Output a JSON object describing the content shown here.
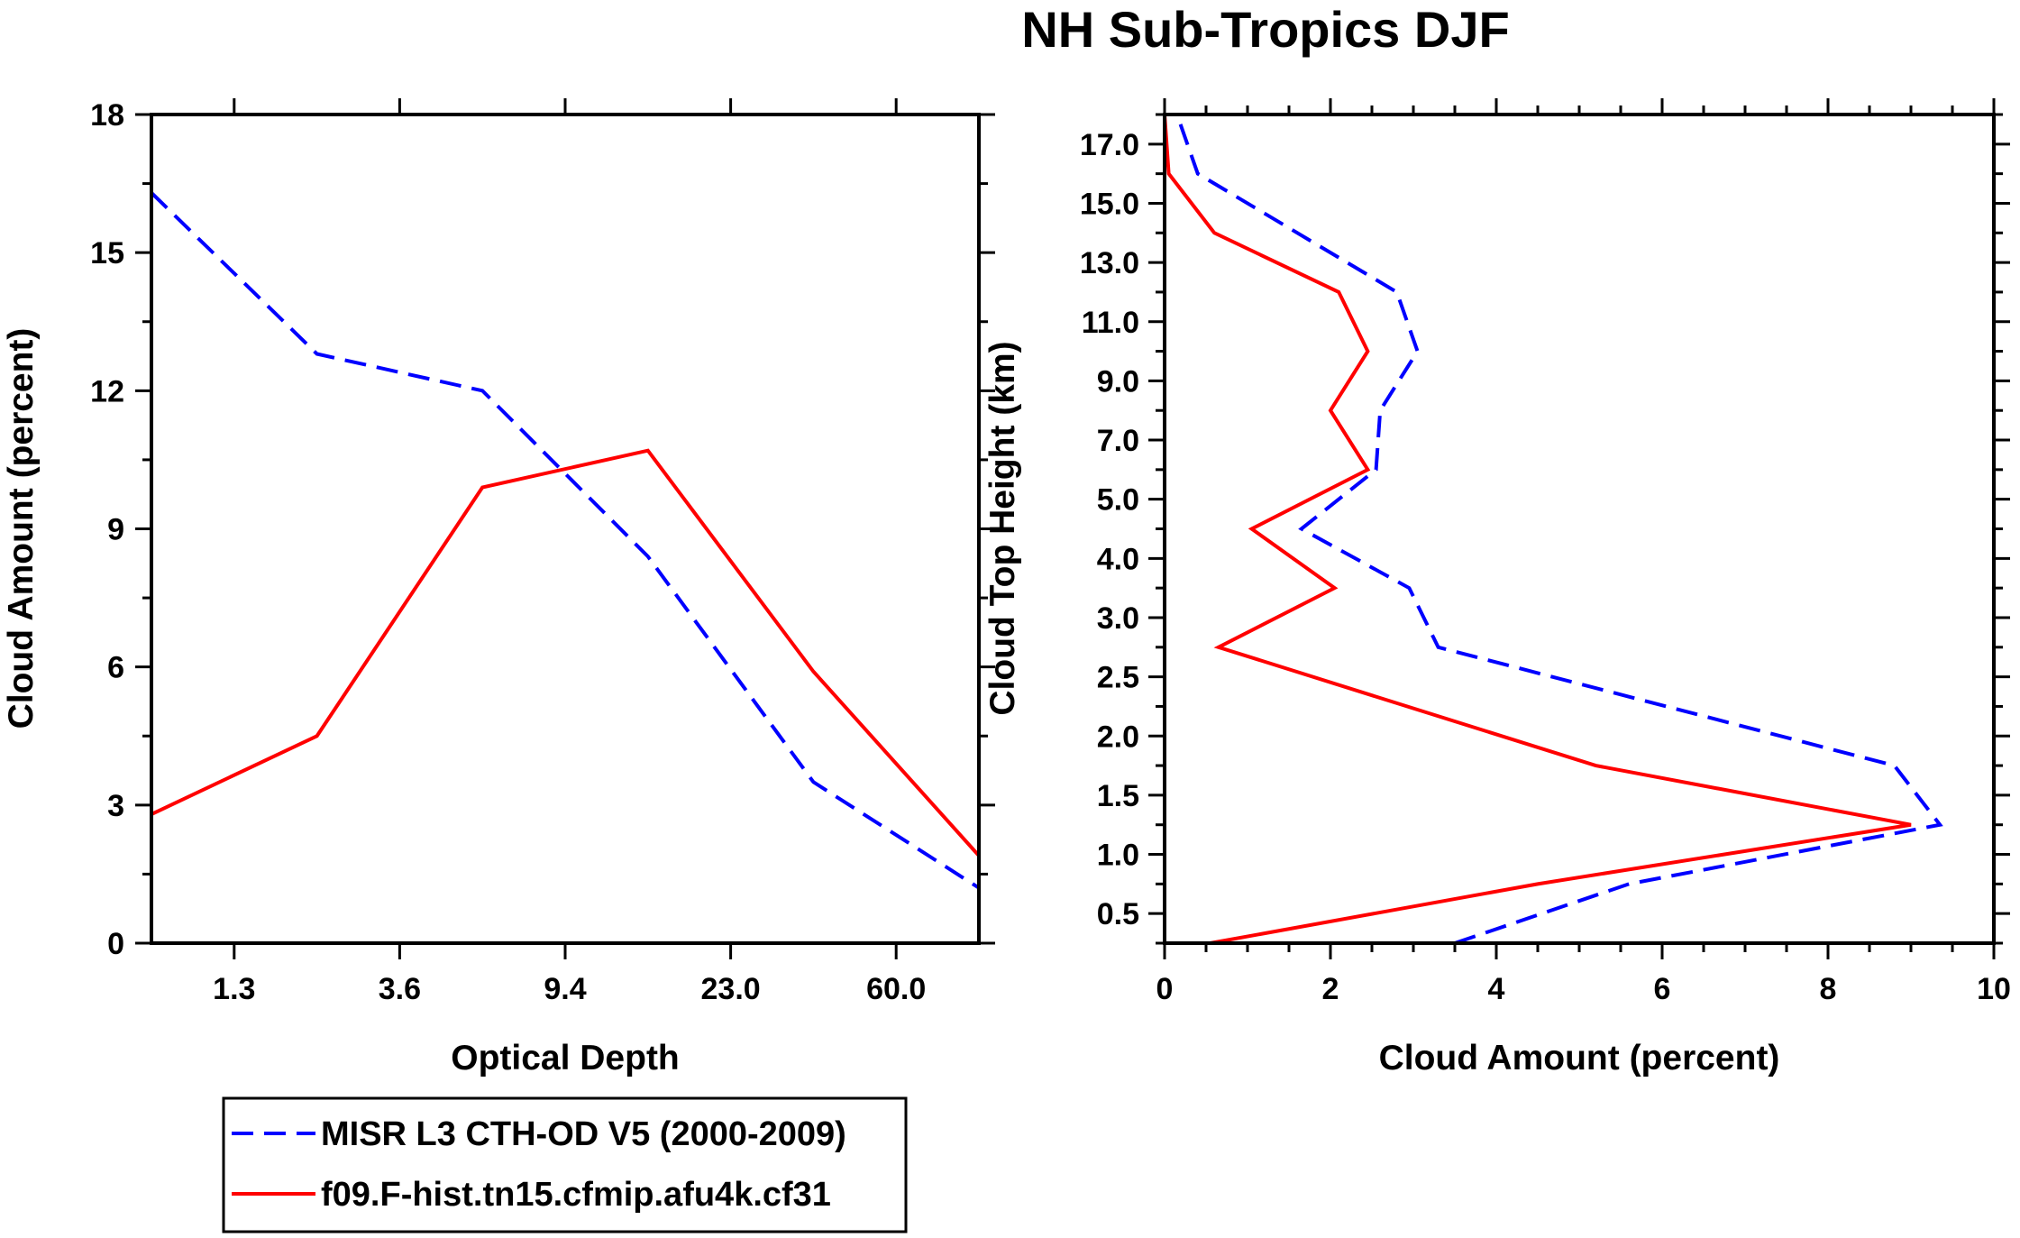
{
  "figure": {
    "title": "NH Sub-Tropics DJF"
  },
  "chart_data": [
    {
      "type": "line",
      "xlabel": "Optical Depth",
      "ylabel": "Cloud Amount (percent)",
      "xtick_labels": [
        "1.3",
        "3.6",
        "9.4",
        "23.0",
        "60.0"
      ],
      "yticks": [
        0,
        3,
        6,
        9,
        12,
        15,
        18
      ],
      "ylim": [
        0,
        18
      ],
      "x_bins": [
        0,
        1,
        2,
        3,
        4,
        5,
        6
      ],
      "series": [
        {
          "name": "MISR L3 CTH-OD V5 (2000-2009)",
          "color": "#0000ff",
          "style": "dashed",
          "x": [
            0,
            1,
            2,
            3,
            4,
            5
          ],
          "y": [
            16.3,
            12.8,
            12.0,
            8.4,
            3.5,
            1.2
          ]
        },
        {
          "name": "f09.F-hist.tn15.cfmip.afu4k.cf31",
          "color": "#ff0000",
          "style": "solid",
          "x": [
            0,
            1,
            2,
            3,
            4,
            5
          ],
          "y": [
            2.8,
            4.5,
            9.9,
            10.7,
            5.9,
            1.9
          ]
        }
      ]
    },
    {
      "type": "line",
      "xlabel": "Cloud Amount (percent)",
      "ylabel": "Cloud Top Height (km)",
      "xticks": [
        0,
        2,
        4,
        6,
        8,
        10
      ],
      "xlim": [
        0,
        10
      ],
      "ytick_labels": [
        "0.5",
        "1.0",
        "1.5",
        "2.0",
        "2.5",
        "3.0",
        "4.0",
        "5.0",
        "7.0",
        "9.0",
        "11.0",
        "13.0",
        "15.0",
        "17.0"
      ],
      "ylim_index": [
        -0.5,
        13.5
      ],
      "series": [
        {
          "name": "MISR L3 CTH-OD V5 (2000-2009)",
          "color": "#0000ff",
          "style": "dashed",
          "level_index": [
            -0.5,
            0.5,
            1.5,
            2.5,
            3.5,
            4.5,
            5.5,
            6.5,
            7.5,
            8.5,
            9.5,
            10.5,
            11.5,
            12.5,
            13.5
          ],
          "amount": [
            3.5,
            5.6,
            9.35,
            8.8,
            3.3,
            2.95,
            1.65,
            2.55,
            2.6,
            3.05,
            2.8,
            0.4,
            0.15
          ],
          "level_points": [
            -0.5,
            0.5,
            1.5,
            2.5,
            4.5,
            5.5,
            6.5,
            7.5,
            8.5,
            9.5,
            10.5,
            12.5,
            13.5
          ]
        },
        {
          "name": "f09.F-hist.tn15.cfmip.afu4k.cf31",
          "color": "#ff0000",
          "style": "solid",
          "amount": [
            0.55,
            4.5,
            9.0,
            5.2,
            0.65,
            2.05,
            1.05,
            2.45,
            2.0,
            2.45,
            2.1,
            0.6,
            0.05,
            0.0
          ],
          "level_points": [
            -0.5,
            0.5,
            1.5,
            2.5,
            4.5,
            5.5,
            6.5,
            7.5,
            8.5,
            9.5,
            10.5,
            11.5,
            12.5,
            13.5
          ]
        }
      ]
    }
  ],
  "legend": {
    "items": [
      {
        "label": "MISR L3 CTH-OD V5 (2000-2009)",
        "color": "#0000ff",
        "style": "dashed"
      },
      {
        "label": "f09.F-hist.tn15.cfmip.afu4k.cf31",
        "color": "#ff0000",
        "style": "solid"
      }
    ]
  }
}
